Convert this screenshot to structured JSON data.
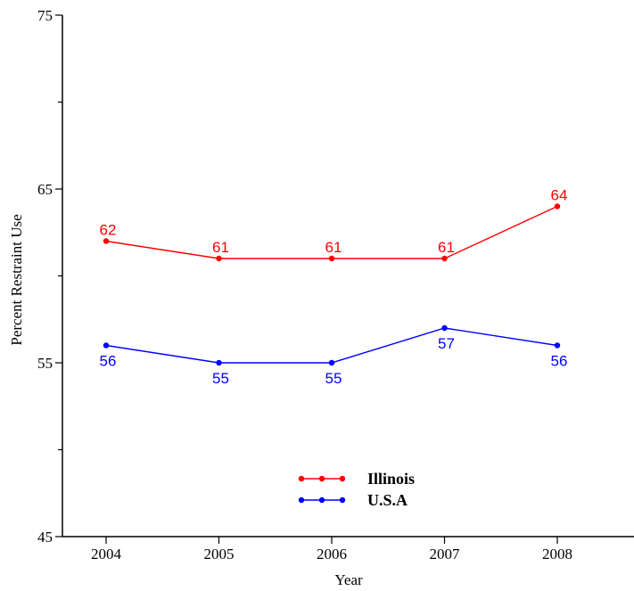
{
  "chart_data": {
    "type": "line",
    "title": "",
    "xlabel": "Year",
    "ylabel": "Percent Restraint Use",
    "categories": [
      "2004",
      "2005",
      "2006",
      "2007",
      "2008"
    ],
    "ylim": [
      45,
      75
    ],
    "yticks": [
      45,
      55,
      65,
      75
    ],
    "grid": false,
    "legend_position": "bottom-center",
    "series": [
      {
        "name": "Illinois",
        "color": "#ff0000",
        "values": [
          62,
          61,
          61,
          61,
          64
        ],
        "labels": [
          "62",
          "61",
          "61",
          "61",
          "64"
        ],
        "label_position": "above"
      },
      {
        "name": "U.S.A",
        "color": "#0000ff",
        "values": [
          56,
          55,
          55,
          57,
          56
        ],
        "labels": [
          "56",
          "55",
          "55",
          "57",
          "56"
        ],
        "label_position": "below"
      }
    ]
  },
  "title_color": "#1a3f8f"
}
